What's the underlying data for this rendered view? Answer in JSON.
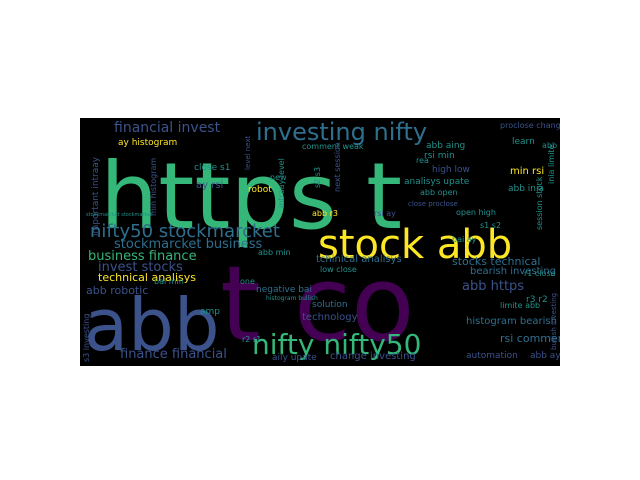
{
  "wordcloud": {
    "background": "#000000",
    "palette": {
      "purple": "#440154",
      "indigo": "#3b528b",
      "teal": "#21918c",
      "green": "#35b779",
      "yellow": "#fde725"
    },
    "words": [
      {
        "text": "https t",
        "color": "#35b779"
      },
      {
        "text": "t co",
        "color": "#440154"
      },
      {
        "text": "abb",
        "color": "#3b528b"
      },
      {
        "text": "stock abb",
        "color": "#fde725"
      },
      {
        "text": "nifty nifty50",
        "color": "#35b779"
      },
      {
        "text": "investing nifty",
        "color": "#2f6f8e"
      },
      {
        "text": "nifty50 stockmarcket",
        "color": "#2f6f8e"
      },
      {
        "text": "financial invest",
        "color": "#3b528b"
      },
      {
        "text": "stockmarcket business",
        "color": "#2f6f8e"
      },
      {
        "text": "business finance",
        "color": "#35b779"
      },
      {
        "text": "invest stocks",
        "color": "#3b528b"
      },
      {
        "text": "finance financial",
        "color": "#3b528b"
      },
      {
        "text": "technical analisys",
        "color": "#fde725"
      },
      {
        "text": "abb robotic",
        "color": "#3b528b"
      },
      {
        "text": "abb https",
        "color": "#3b528b"
      },
      {
        "text": "stocks technical",
        "color": "#2f6f8e"
      },
      {
        "text": "tchinical analisys",
        "color": "#2f6f8e"
      },
      {
        "text": "bearish investing",
        "color": "#2f6f8e"
      },
      {
        "text": "histogram bearish",
        "color": "#2f6f8e"
      },
      {
        "text": "rsi comment",
        "color": "#2f6f8e"
      },
      {
        "text": "change investing",
        "color": "#3b528b"
      },
      {
        "text": "automation",
        "color": "#3b528b"
      },
      {
        "text": "abb ay",
        "color": "#3b528b"
      },
      {
        "text": "aily upate",
        "color": "#3b528b"
      },
      {
        "text": "technology",
        "color": "#3b528b"
      },
      {
        "text": "solution",
        "color": "#2f6f8e"
      },
      {
        "text": "negative bai",
        "color": "#2f6f8e"
      },
      {
        "text": "low close",
        "color": "#21918c"
      },
      {
        "text": "ay histogram",
        "color": "#fde725"
      },
      {
        "text": "comment weak",
        "color": "#21918c"
      },
      {
        "text": "close s1",
        "color": "#21918c"
      },
      {
        "text": "ay rsi",
        "color": "#3b528b"
      },
      {
        "text": "robot",
        "color": "#fde725"
      },
      {
        "text": "intraay level",
        "color": "#21918c"
      },
      {
        "text": "abb aing",
        "color": "#21918c"
      },
      {
        "text": "rsi min",
        "color": "#21918c"
      },
      {
        "text": "high low",
        "color": "#3b528b"
      },
      {
        "text": "analisys upate",
        "color": "#21918c"
      },
      {
        "text": "abb open",
        "color": "#21918c"
      },
      {
        "text": "min rsi",
        "color": "#fde725"
      },
      {
        "text": "abb inia",
        "color": "#21918c"
      },
      {
        "text": "open high",
        "color": "#21918c"
      },
      {
        "text": "s1 s2",
        "color": "#21918c"
      },
      {
        "text": "bai ay",
        "color": "#21918c"
      },
      {
        "text": "rsi ay",
        "color": "#3b528b"
      },
      {
        "text": "abb r3",
        "color": "#fde725"
      },
      {
        "text": "abb min",
        "color": "#21918c"
      },
      {
        "text": "bai min",
        "color": "#21918c"
      },
      {
        "text": "amp",
        "color": "#21918c"
      },
      {
        "text": "one",
        "color": "#21918c"
      },
      {
        "text": "r2 r1",
        "color": "#21918c"
      },
      {
        "text": "r3 r2",
        "color": "#21918c"
      },
      {
        "text": "r1 close",
        "color": "#21918c"
      },
      {
        "text": "limite abb",
        "color": "#21918c"
      },
      {
        "text": "learn",
        "color": "#21918c"
      },
      {
        "text": "rea",
        "color": "#21918c"
      },
      {
        "text": "new",
        "color": "#21918c"
      },
      {
        "text": "s2 s3",
        "color": "#21918c"
      },
      {
        "text": "abb s",
        "color": "#21918c"
      },
      {
        "text": "proclose change",
        "color": "#3b528b"
      },
      {
        "text": "important intraay",
        "color": "#3b528b"
      },
      {
        "text": "min histogram",
        "color": "#3b528b"
      },
      {
        "text": "inia limite",
        "color": "#21918c"
      },
      {
        "text": "s3 investing",
        "color": "#3b528b"
      },
      {
        "text": "session stock",
        "color": "#21918c"
      },
      {
        "text": "next session",
        "color": "#3b528b"
      },
      {
        "text": "bullish investing",
        "color": "#3b528b"
      },
      {
        "text": "close proclose",
        "color": "#3b528b"
      },
      {
        "text": "level next",
        "color": "#3b528b"
      },
      {
        "text": "histogram bullish",
        "color": "#21918c"
      },
      {
        "text": "stockmarcket stockmarket",
        "color": "#21918c"
      }
    ]
  }
}
